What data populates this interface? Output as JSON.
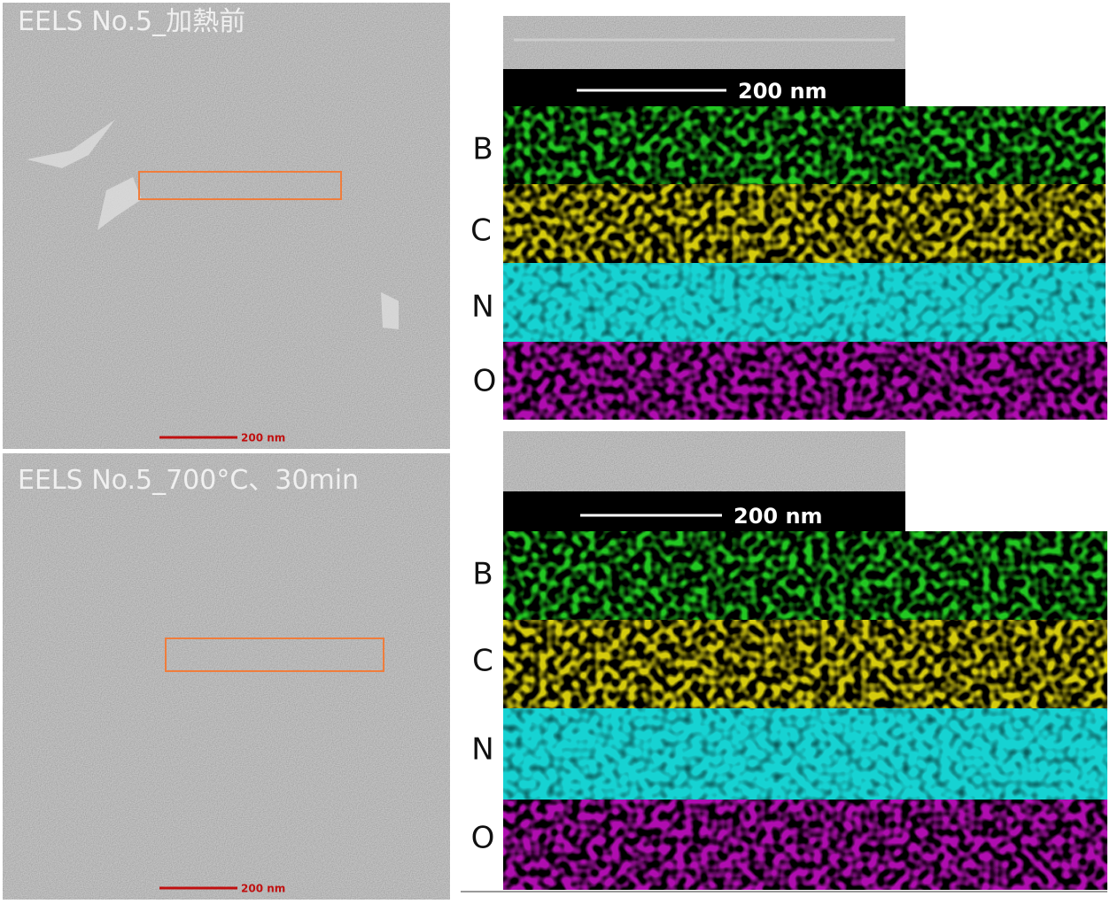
{
  "panels": [
    {
      "title": "EELS No.5_加熱前",
      "image_scale_bar": "200 nm",
      "map_scale_bar": "200 nm",
      "elements": [
        "B",
        "C",
        "N",
        "O"
      ]
    },
    {
      "title": "EELS No.5_700°C、30min",
      "image_scale_bar": "200 nm",
      "map_scale_bar": "200 nm",
      "elements": [
        "B",
        "C",
        "N",
        "O"
      ]
    }
  ]
}
